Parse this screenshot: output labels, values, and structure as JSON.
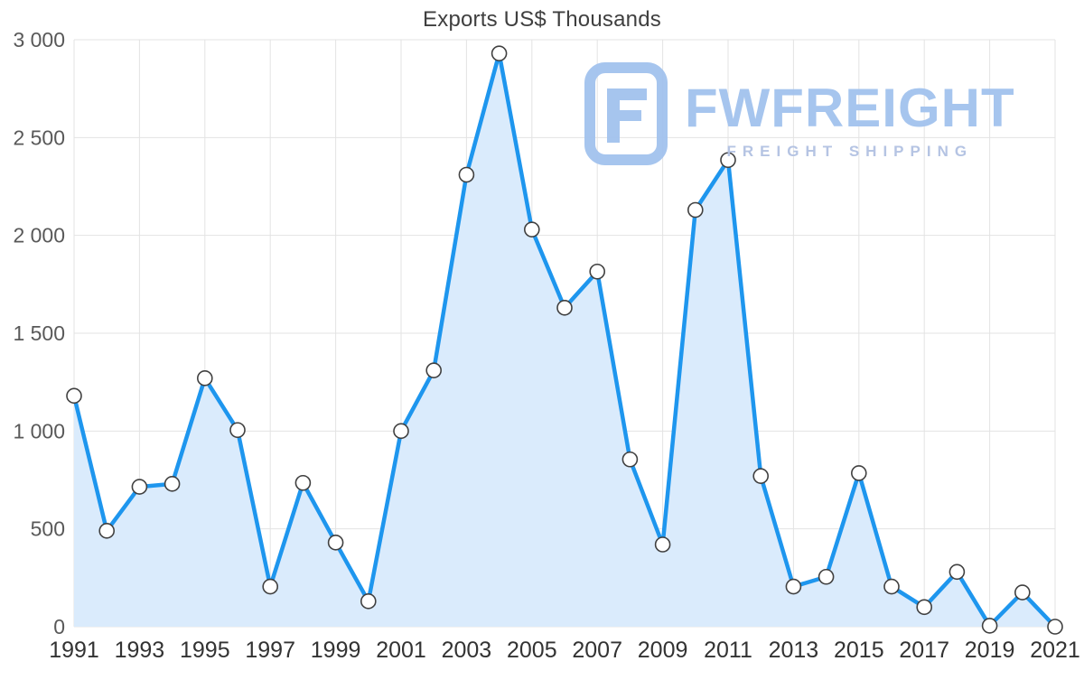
{
  "header": {
    "title": "Exports US$ Thousands"
  },
  "watermark": {
    "brand": "FWFREIGHT",
    "tagline": "FREIGHT SHIPPING",
    "brand_color": "#a2c2ee",
    "tagline_color": "#b2c1e2"
  },
  "chart_data": {
    "type": "area",
    "title": "Exports US$ Thousands",
    "xlabel": "",
    "ylabel": "US$ Thousands",
    "x": [
      1991,
      1992,
      1993,
      1994,
      1995,
      1996,
      1997,
      1998,
      1999,
      2000,
      2001,
      2002,
      2003,
      2004,
      2005,
      2006,
      2007,
      2008,
      2009,
      2010,
      2011,
      2012,
      2013,
      2014,
      2015,
      2016,
      2017,
      2018,
      2019,
      2020,
      2021
    ],
    "values": [
      1180,
      490,
      715,
      730,
      1270,
      1005,
      205,
      735,
      430,
      130,
      1000,
      1310,
      2310,
      2930,
      2030,
      1630,
      1815,
      855,
      420,
      2130,
      2385,
      770,
      205,
      255,
      785,
      205,
      100,
      280,
      5,
      175,
      0
    ],
    "ylim": [
      0,
      3000
    ],
    "yticks": [
      0,
      500,
      1000,
      1500,
      2000,
      2500,
      3000
    ],
    "ytick_labels": [
      "0",
      "500",
      "1 000",
      "1 500",
      "2 000",
      "2 500",
      "3 000"
    ],
    "xticks": [
      1991,
      1993,
      1995,
      1997,
      1999,
      2001,
      2003,
      2005,
      2007,
      2009,
      2011,
      2013,
      2015,
      2017,
      2019,
      2021
    ],
    "grid": true,
    "legend": false,
    "colors": {
      "line": "#1e96ee",
      "fill": "#daebfc",
      "marker_fill": "#ffffff",
      "marker_stroke": "#404040",
      "grid": "#e3e3e3",
      "y_tick_text": "#595959",
      "x_tick_text": "#333333",
      "title_text": "#3f3f3f"
    }
  }
}
